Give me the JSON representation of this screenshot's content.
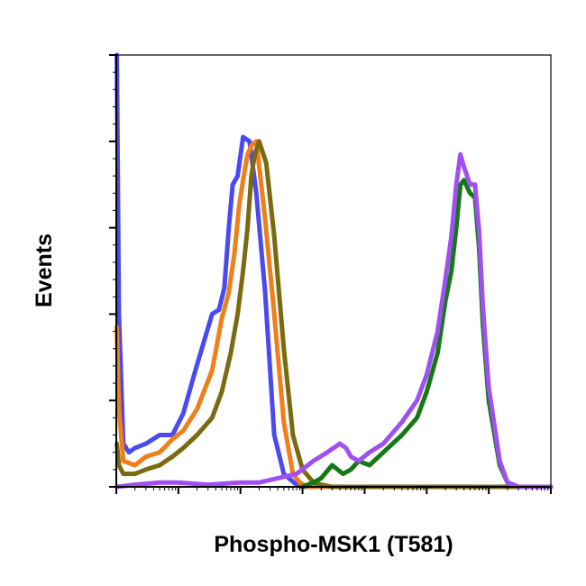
{
  "chart_data": {
    "type": "line",
    "title": "",
    "xlabel": "Phospho-MSK1 (T581)",
    "ylabel": "Events",
    "x_scale": "log",
    "xlim": [
      1,
      10000000
    ],
    "ylim": [
      0,
      100
    ],
    "grid": false,
    "legend": "none",
    "series": [
      {
        "color": "#4a4af2",
        "x": [
          1.02,
          1.1,
          1.3,
          1.6,
          2,
          3,
          5,
          8,
          12,
          18,
          25,
          35,
          45,
          55,
          65,
          75,
          90,
          110,
          140,
          180,
          250,
          350,
          500,
          800,
          1000,
          10000000
        ],
        "y": [
          100,
          40,
          10,
          8,
          9,
          10,
          12,
          12,
          17,
          26,
          33,
          40,
          41,
          46,
          60,
          70,
          72,
          81,
          80,
          68,
          45,
          12,
          3,
          0.5,
          0,
          0
        ]
      },
      {
        "color": "#f07f1a",
        "x": [
          1.02,
          1.1,
          1.3,
          2,
          3,
          5,
          8,
          12,
          20,
          35,
          50,
          65,
          80,
          95,
          110,
          130,
          150,
          180,
          250,
          350,
          500,
          700,
          900,
          1200,
          10000000
        ],
        "y": [
          37,
          18,
          6,
          5,
          7,
          8,
          11,
          13,
          18,
          27,
          39,
          45,
          54,
          65,
          71,
          77,
          79,
          80,
          62,
          40,
          15,
          3,
          1,
          0,
          0
        ]
      },
      {
        "color": "#7a6a10",
        "x": [
          1.02,
          1.1,
          1.3,
          2,
          3,
          5,
          8,
          12,
          20,
          35,
          50,
          70,
          90,
          110,
          130,
          150,
          170,
          200,
          260,
          350,
          500,
          700,
          1000,
          1500,
          2000,
          3000,
          10000000
        ],
        "y": [
          10,
          5,
          3,
          3,
          4,
          5,
          7,
          9,
          12,
          16,
          22,
          31,
          40,
          50,
          60,
          72,
          77,
          80,
          75,
          58,
          32,
          12,
          4,
          1,
          0.5,
          0,
          0
        ]
      },
      {
        "color": "#147814",
        "x": [
          1000,
          1500,
          2000,
          3000,
          4500,
          6000,
          8000,
          12000,
          20000,
          40000,
          70000,
          100000,
          150000,
          200000,
          250000,
          300000,
          350000,
          400000,
          500000,
          600000,
          700000,
          800000,
          1000000,
          1500000,
          2000000,
          3000000,
          4000000,
          10000000
        ],
        "y": [
          0,
          1,
          2,
          5,
          3,
          4,
          6,
          5,
          8,
          12,
          16,
          22,
          31,
          43,
          50,
          60,
          70,
          71,
          68,
          67,
          55,
          38,
          20,
          5,
          1,
          0,
          0,
          0
        ]
      },
      {
        "color": "#a050f0",
        "x": [
          1.02,
          2,
          5,
          10,
          30,
          100,
          200,
          400,
          800,
          1500,
          2500,
          4000,
          5000,
          6000,
          8000,
          12000,
          20000,
          40000,
          70000,
          100000,
          150000,
          200000,
          250000,
          300000,
          350000,
          400000,
          500000,
          600000,
          700000,
          800000,
          1000000,
          1500000,
          2000000,
          3000000,
          4000000,
          10000000
        ],
        "y": [
          0,
          0.5,
          1,
          1,
          0.5,
          1,
          1,
          2,
          3,
          6,
          8,
          10,
          9,
          7,
          6,
          8,
          10,
          15,
          20,
          26,
          36,
          48,
          58,
          70,
          77,
          74,
          70,
          70,
          59,
          42,
          23,
          6,
          1,
          0,
          0,
          0
        ]
      }
    ]
  }
}
